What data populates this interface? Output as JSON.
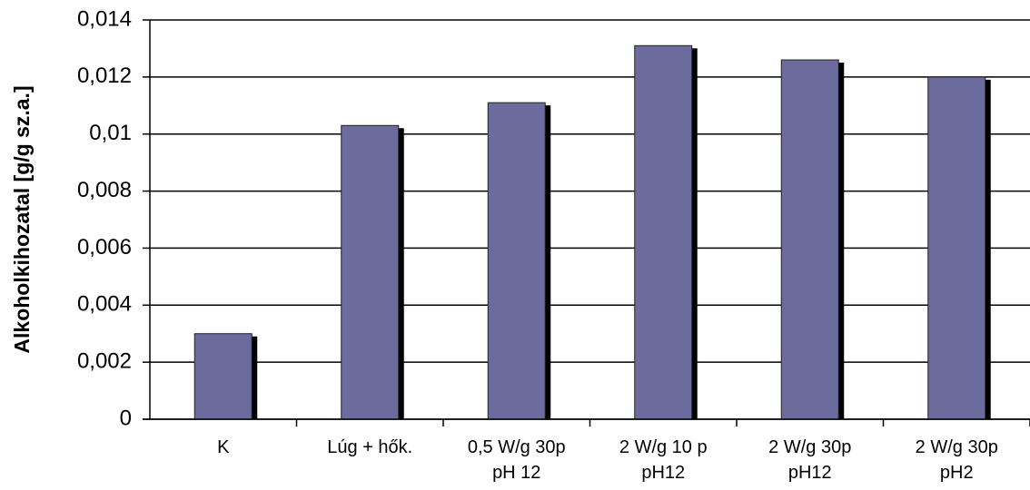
{
  "chart_data": {
    "type": "bar",
    "ylabel": "Alkoholkihozatal [g/g sz.a.]",
    "categories": [
      "K",
      "Lúg + hők.",
      "0,5 W/g 30p\npH 12",
      "2 W/g 10 p\npH12",
      "2 W/g 30p\npH12",
      "2 W/g 30p\npH2"
    ],
    "values": [
      0.003,
      0.0103,
      0.0111,
      0.0131,
      0.0126,
      0.012
    ],
    "color": "#6b6b9e",
    "ylim": [
      0,
      0.014
    ],
    "yticks": [
      0,
      {
        "value": 0.002,
        "label": "0,002"
      },
      {
        "value": 0.004,
        "label": "0,004"
      },
      {
        "value": 0.006,
        "label": "0,006"
      },
      {
        "value": 0.008,
        "label": "0,008"
      },
      {
        "value": 0.01,
        "label": "0,01"
      },
      {
        "value": 0.012,
        "label": "0,012"
      },
      {
        "value": 0.014,
        "label": "0,014"
      }
    ],
    "grid": true
  }
}
